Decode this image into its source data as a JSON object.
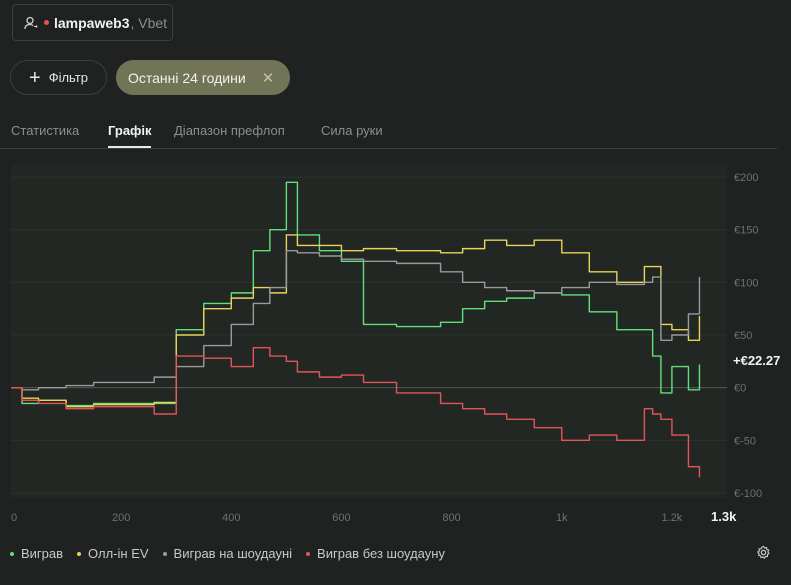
{
  "user": {
    "name": "lampaweb3",
    "site": ", Vbet",
    "status_color": "#e25555"
  },
  "filter_button_label": "Фільтр",
  "time_filter": {
    "label": "Останні 24 години",
    "clear_icon": "close-icon"
  },
  "tabs": [
    {
      "label": "Статистика",
      "active": false
    },
    {
      "label": "Графік",
      "active": true
    },
    {
      "label": "Діапазон префлоп",
      "active": false
    },
    {
      "label": "Сила руки",
      "active": false
    }
  ],
  "legend": [
    {
      "label": "Виграв",
      "color": "#5fe07a"
    },
    {
      "label": "Олл-ін EV",
      "color": "#e8d45a"
    },
    {
      "label": "Виграв на шоудауні",
      "color": "#9a9a9a"
    },
    {
      "label": "Виграв без шоудауну",
      "color": "#e05555"
    }
  ],
  "settings_icon": "gear-icon",
  "chart_data": {
    "type": "line",
    "x_ticks": [
      "0",
      "200",
      "400",
      "600",
      "800",
      "1k",
      "1.2k"
    ],
    "x_max_label": "1.3k",
    "y_ticks": [
      "€200",
      "€150",
      "€100",
      "€50",
      "€0",
      "€-50",
      "€-100"
    ],
    "xlim": [
      0,
      1300
    ],
    "ylim": [
      -100,
      200
    ],
    "current_value_label": "+€22.27",
    "series": [
      {
        "name": "Виграв",
        "color": "#5fe07a",
        "x": [
          0,
          20,
          50,
          100,
          150,
          260,
          300,
          350,
          400,
          440,
          470,
          500,
          520,
          560,
          600,
          640,
          700,
          780,
          820,
          860,
          900,
          950,
          1000,
          1050,
          1100,
          1150,
          1165,
          1180,
          1200,
          1230,
          1250
        ],
        "y": [
          0,
          -15,
          -12,
          -17,
          -15,
          -15,
          55,
          80,
          90,
          130,
          150,
          195,
          145,
          130,
          120,
          60,
          58,
          62,
          75,
          82,
          85,
          90,
          88,
          72,
          55,
          55,
          30,
          -5,
          20,
          -2,
          22
        ]
      },
      {
        "name": "Олл-ін EV",
        "color": "#e8d45a",
        "x": [
          0,
          20,
          50,
          100,
          150,
          260,
          300,
          350,
          400,
          440,
          470,
          500,
          520,
          560,
          600,
          640,
          700,
          780,
          820,
          860,
          900,
          950,
          1000,
          1050,
          1100,
          1150,
          1165,
          1180,
          1200,
          1230,
          1250
        ],
        "y": [
          0,
          -10,
          -12,
          -18,
          -16,
          -14,
          50,
          75,
          85,
          95,
          90,
          145,
          135,
          135,
          130,
          132,
          130,
          128,
          132,
          140,
          135,
          140,
          128,
          110,
          100,
          115,
          115,
          60,
          55,
          45,
          68
        ]
      },
      {
        "name": "Виграв на шоудауні",
        "color": "#9a9a9a",
        "x": [
          0,
          20,
          50,
          100,
          150,
          260,
          300,
          350,
          400,
          440,
          470,
          500,
          520,
          560,
          600,
          640,
          700,
          780,
          820,
          860,
          900,
          950,
          1000,
          1050,
          1100,
          1150,
          1165,
          1180,
          1200,
          1230,
          1250
        ],
        "y": [
          0,
          -2,
          0,
          2,
          5,
          10,
          20,
          40,
          60,
          80,
          95,
          130,
          128,
          125,
          122,
          120,
          118,
          110,
          100,
          95,
          92,
          90,
          95,
          100,
          98,
          100,
          105,
          45,
          50,
          70,
          105
        ]
      },
      {
        "name": "Виграв без шоудауну",
        "color": "#e05555",
        "x": [
          0,
          20,
          50,
          100,
          150,
          260,
          300,
          350,
          400,
          440,
          470,
          500,
          520,
          560,
          600,
          640,
          700,
          780,
          820,
          860,
          900,
          950,
          1000,
          1050,
          1100,
          1150,
          1165,
          1180,
          1200,
          1230,
          1250
        ],
        "y": [
          0,
          -12,
          -15,
          -20,
          -18,
          -25,
          30,
          28,
          20,
          38,
          30,
          25,
          15,
          10,
          12,
          5,
          -5,
          -15,
          -20,
          -25,
          -30,
          -38,
          -50,
          -45,
          -50,
          -20,
          -25,
          -30,
          -45,
          -75,
          -85
        ]
      }
    ]
  }
}
